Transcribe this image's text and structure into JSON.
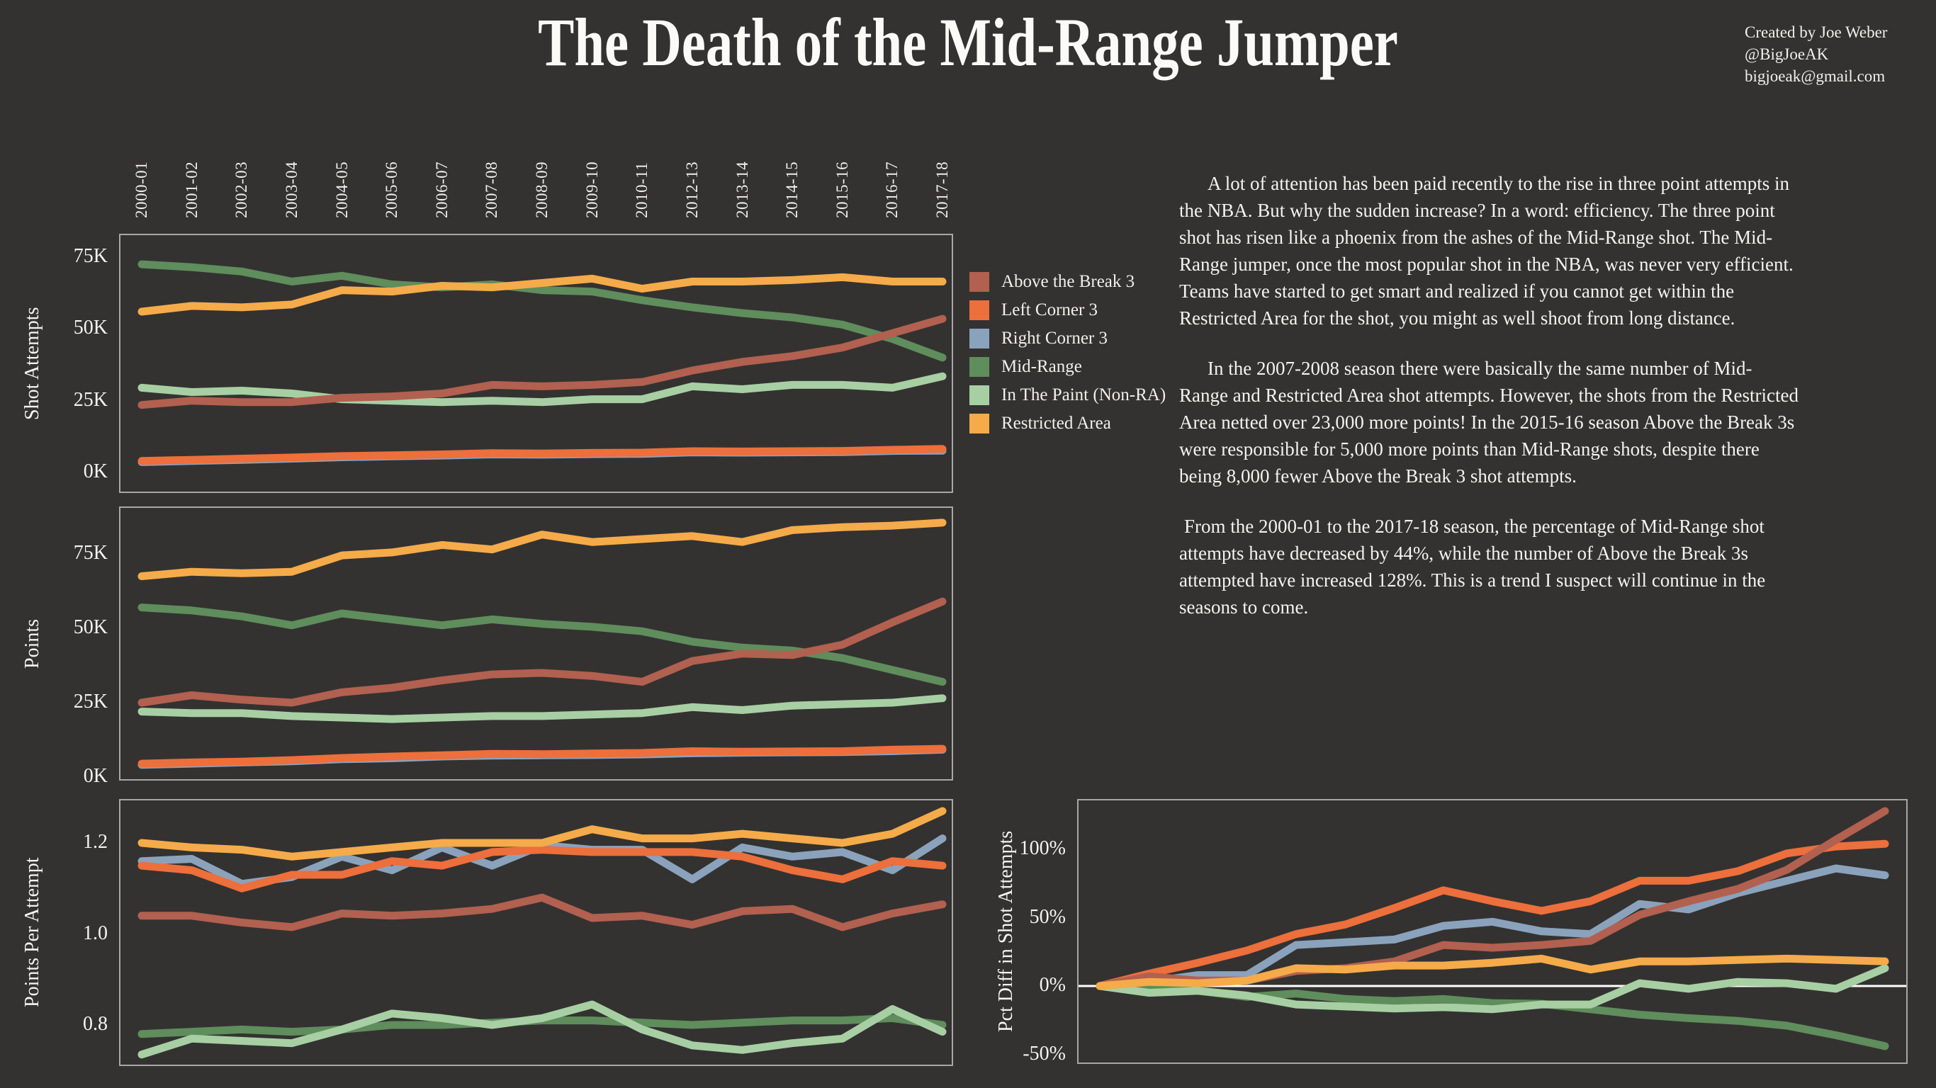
{
  "page": {
    "title": "The Death of the Mid-Range Jumper",
    "credit": [
      "Created by Joe Weber",
      "@BigJoeAK",
      "bigjoeak@gmail.com"
    ],
    "background": "#333231",
    "text_color": "#f2efe9",
    "panel_border_color": "#a9a7a4",
    "zero_line_color": "#ffffff"
  },
  "seasons": [
    "2000-01",
    "2001-02",
    "2002-03",
    "2003-04",
    "2004-05",
    "2005-06",
    "2006-07",
    "2007-08",
    "2008-09",
    "2009-10",
    "2010-11",
    "2012-13",
    "2013-14",
    "2014-15",
    "2015-16",
    "2016-17",
    "2017-18"
  ],
  "legend": {
    "items": [
      {
        "label": "Above the Break 3",
        "color": "#b2604f"
      },
      {
        "label": "Left Corner 3",
        "color": "#ec6f3c"
      },
      {
        "label": "Right Corner 3",
        "color": "#8ba2bc"
      },
      {
        "label": "Mid-Range",
        "color": "#5f8d5c"
      },
      {
        "label": "In The Paint (Non-RA)",
        "color": "#a7cfa3"
      },
      {
        "label": "Restricted Area",
        "color": "#f5ab49"
      }
    ]
  },
  "article": {
    "paragraphs": [
      "A lot of attention has been paid recently to the rise in three point attempts in the NBA. But why the sudden increase? In a word: efficiency. The three point shot has risen like a phoenix from the ashes of the Mid-Range shot. The Mid-Range jumper, once the most popular shot in the NBA, was never very efficient. Teams have started to get smart and realized if you cannot get within the Restricted Area for the shot, you might as well shoot from long distance.",
      "In the 2007-2008 season there were basically the same number of Mid-Range and Restricted Area shot attempts. However, the shots from the Restricted Area netted over 23,000 more points! In the 2015-16 season Above the Break 3s were responsible for 5,000 more points than Mid-Range shots, despite there being 8,000 fewer Above the Break 3 shot attempts.",
      "From the 2000-01 to the 2017-18 season, the percentage of Mid-Range shot attempts have decreased by 44%, while the number of Above the Break 3s attempted have increased 128%. This is a trend I suspect will continue in the seasons to come."
    ]
  },
  "chart_data": [
    {
      "id": "shot-attempts",
      "type": "line",
      "ylabel": "Shot Attempts",
      "unit": "thousands",
      "ylim": [
        0,
        90
      ],
      "grid": false,
      "legend_position": "right-of-chart",
      "yticks": [
        {
          "label": "75K",
          "value": 75
        },
        {
          "label": "50K",
          "value": 50
        },
        {
          "label": "25K",
          "value": 25
        },
        {
          "label": "0K",
          "value": 0
        }
      ],
      "series": [
        {
          "name": "Above the Break 3",
          "values": [
            23.5,
            25,
            24.5,
            24.5,
            26,
            26.5,
            27.5,
            30.5,
            30,
            30.5,
            31.5,
            35.5,
            38.5,
            40.5,
            43.5,
            48.5,
            53.5
          ]
        },
        {
          "name": "Left Corner 3",
          "values": [
            4,
            4.4,
            4.8,
            5.2,
            5.7,
            6,
            6.3,
            6.7,
            6.6,
            6.8,
            6.9,
            7.4,
            7.3,
            7.4,
            7.5,
            7.9,
            8.2
          ]
        },
        {
          "name": "Right Corner 3",
          "values": [
            3.6,
            4,
            4.4,
            4.8,
            5.3,
            5.6,
            5.9,
            6.3,
            6.2,
            6.4,
            6.5,
            7,
            6.9,
            7,
            7.1,
            7.5,
            7.6
          ]
        },
        {
          "name": "Mid-Range",
          "values": [
            72.5,
            71.5,
            70,
            66.5,
            68.5,
            65.5,
            64.5,
            65.5,
            63.5,
            63,
            60,
            57.5,
            55.5,
            54,
            51.5,
            46.5,
            40
          ]
        },
        {
          "name": "In The Paint (Non-RA)",
          "values": [
            29.5,
            28,
            28.5,
            27.5,
            25.5,
            25,
            24.5,
            25,
            24.5,
            25.5,
            25.5,
            30,
            29,
            30.5,
            30.5,
            29.5,
            33.5
          ]
        },
        {
          "name": "Restricted Area",
          "values": [
            56,
            58,
            57.5,
            58.5,
            63.5,
            63,
            65,
            64.5,
            66,
            67.5,
            64,
            66.5,
            66.5,
            67,
            68,
            66.5,
            66.5
          ]
        }
      ]
    },
    {
      "id": "points",
      "type": "line",
      "ylabel": "Points",
      "unit": "thousands",
      "ylim": [
        0,
        91
      ],
      "grid": false,
      "yticks": [
        {
          "label": "75K",
          "value": 75
        },
        {
          "label": "50K",
          "value": 50
        },
        {
          "label": "25K",
          "value": 25
        },
        {
          "label": "0K",
          "value": 0
        }
      ],
      "series": [
        {
          "name": "Above the Break 3",
          "values": [
            25,
            27.5,
            26,
            25,
            28.5,
            30,
            32.5,
            34.5,
            35,
            34,
            32,
            39,
            41.5,
            41,
            44.5,
            52,
            59
          ]
        },
        {
          "name": "Left Corner 3",
          "values": [
            4.5,
            4.9,
            5.2,
            5.7,
            6.4,
            6.9,
            7.3,
            7.8,
            7.7,
            7.9,
            8.1,
            8.7,
            8.5,
            8.6,
            8.7,
            9.2,
            9.5
          ]
        },
        {
          "name": "Right Corner 3",
          "values": [
            4.1,
            4.5,
            4.9,
            5.3,
            6,
            6.3,
            6.9,
            7.2,
            7.3,
            7.4,
            7.6,
            8,
            8.2,
            8.3,
            8.4,
            8.7,
            9.2
          ]
        },
        {
          "name": "Mid-Range",
          "values": [
            57,
            56,
            54,
            51,
            55,
            53,
            51,
            53,
            51.5,
            50.5,
            49,
            45.5,
            43.5,
            42.5,
            40,
            36,
            32
          ]
        },
        {
          "name": "In The Paint (Non-RA)",
          "values": [
            22,
            21.5,
            21.5,
            20.5,
            20,
            19.5,
            20,
            20.5,
            20.5,
            21,
            21.5,
            23.5,
            22.5,
            24,
            24.5,
            25,
            26.5
          ]
        },
        {
          "name": "Restricted Area",
          "values": [
            67.5,
            69,
            68.5,
            69,
            74.5,
            75.5,
            78,
            76.5,
            81.5,
            79,
            80,
            81,
            79,
            83,
            84,
            84.5,
            85.5
          ]
        }
      ]
    },
    {
      "id": "points-per-attempt",
      "type": "line",
      "ylabel": "Points Per Attempt",
      "ylim": [
        0.68,
        1.32
      ],
      "grid": false,
      "yticks": [
        {
          "label": "1.2",
          "value": 1.2
        },
        {
          "label": "1.0",
          "value": 1.0
        },
        {
          "label": "0.8",
          "value": 0.8
        }
      ],
      "series": [
        {
          "name": "Above the Break 3",
          "values": [
            1.04,
            1.04,
            1.025,
            1.015,
            1.045,
            1.04,
            1.045,
            1.055,
            1.08,
            1.035,
            1.04,
            1.02,
            1.05,
            1.055,
            1.015,
            1.045,
            1.065
          ]
        },
        {
          "name": "Left Corner 3",
          "values": [
            1.15,
            1.14,
            1.1,
            1.13,
            1.13,
            1.16,
            1.15,
            1.18,
            1.185,
            1.18,
            1.18,
            1.18,
            1.17,
            1.14,
            1.12,
            1.16,
            1.15
          ]
        },
        {
          "name": "Right Corner 3",
          "values": [
            1.16,
            1.165,
            1.11,
            1.125,
            1.17,
            1.14,
            1.19,
            1.15,
            1.195,
            1.185,
            1.185,
            1.12,
            1.19,
            1.17,
            1.18,
            1.14,
            1.21
          ]
        },
        {
          "name": "Mid-Range",
          "values": [
            0.78,
            0.785,
            0.79,
            0.785,
            0.79,
            0.8,
            0.8,
            0.805,
            0.81,
            0.81,
            0.805,
            0.8,
            0.805,
            0.81,
            0.81,
            0.815,
            0.8
          ]
        },
        {
          "name": "In The Paint (Non-RA)",
          "values": [
            0.735,
            0.77,
            0.765,
            0.76,
            0.79,
            0.825,
            0.815,
            0.8,
            0.815,
            0.845,
            0.79,
            0.755,
            0.745,
            0.76,
            0.77,
            0.835,
            0.785
          ]
        },
        {
          "name": "Restricted Area",
          "values": [
            1.2,
            1.19,
            1.185,
            1.17,
            1.18,
            1.19,
            1.2,
            1.2,
            1.2,
            1.23,
            1.21,
            1.21,
            1.22,
            1.21,
            1.2,
            1.22,
            1.27
          ]
        }
      ]
    },
    {
      "id": "pct-diff",
      "type": "line",
      "ylabel": "Pct Diff in Shot Attempts",
      "unit": "percent",
      "ylim": [
        -70,
        140
      ],
      "grid": false,
      "zero_line": true,
      "yticks": [
        {
          "label": "100%",
          "value": 100
        },
        {
          "label": "50%",
          "value": 50
        },
        {
          "label": "0%",
          "value": 0
        },
        {
          "label": "-50%",
          "value": -50
        }
      ],
      "series": [
        {
          "name": "Above the Break 3",
          "values": [
            0,
            7,
            4,
            4,
            11,
            13,
            18,
            30,
            28,
            30,
            33,
            52,
            62,
            71,
            85,
            107,
            128
          ]
        },
        {
          "name": "Left Corner 3",
          "values": [
            0,
            9,
            17,
            26,
            38,
            45,
            57,
            70,
            62,
            55,
            62,
            77,
            77,
            84,
            97,
            102,
            104
          ]
        },
        {
          "name": "Right Corner 3",
          "values": [
            0,
            3,
            8,
            8,
            30,
            32,
            34,
            44,
            47,
            40,
            38,
            60,
            56,
            68,
            77,
            86,
            81
          ]
        },
        {
          "name": "Mid-Range",
          "values": [
            0,
            -1.5,
            -3.5,
            -8,
            -5.5,
            -9.5,
            -11,
            -9.5,
            -12.5,
            -13,
            -17,
            -21,
            -23.5,
            -25.5,
            -29,
            -36,
            -44
          ]
        },
        {
          "name": "In The Paint (Non-RA)",
          "values": [
            0,
            -5,
            -3.5,
            -7,
            -13.5,
            -15,
            -16.5,
            -15.5,
            -17,
            -13.5,
            -13.5,
            2,
            -2,
            3,
            2,
            -2,
            13
          ]
        },
        {
          "name": "Restricted Area",
          "values": [
            0,
            3,
            2,
            4,
            13,
            12,
            15,
            15,
            17,
            20,
            12,
            18,
            18,
            19,
            20,
            19,
            18
          ]
        }
      ]
    }
  ]
}
